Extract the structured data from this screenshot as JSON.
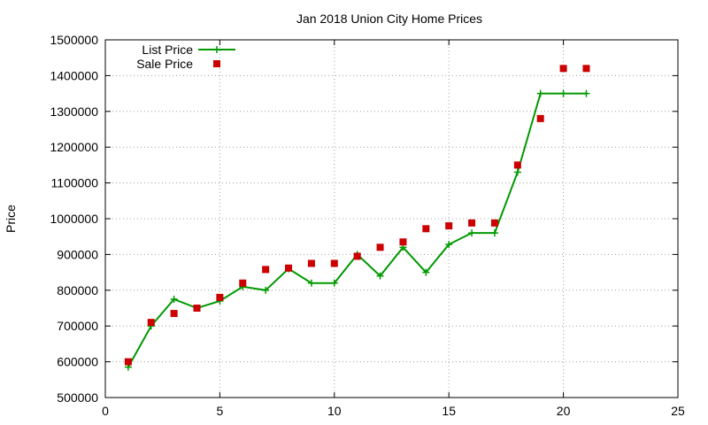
{
  "chart_data": {
    "type": "line",
    "title": "Jan 2018 Union City Home Prices",
    "xlabel": "",
    "ylabel": "Price",
    "xlim": [
      0,
      25
    ],
    "ylim": [
      500000,
      1500000
    ],
    "x_ticks": [
      0,
      5,
      10,
      15,
      20,
      25
    ],
    "y_ticks": [
      500000,
      600000,
      700000,
      800000,
      900000,
      1000000,
      1100000,
      1200000,
      1300000,
      1400000,
      1500000
    ],
    "grid": true,
    "legend_position": "top-left",
    "series": [
      {
        "name": "List Price",
        "style": "line+plus",
        "color": "#009900",
        "x": [
          1,
          2,
          3,
          4,
          5,
          6,
          7,
          8,
          9,
          10,
          11,
          12,
          13,
          14,
          15,
          16,
          17,
          18,
          19,
          20,
          21
        ],
        "values": [
          585000,
          700000,
          775000,
          750000,
          770000,
          810000,
          800000,
          860000,
          820000,
          820000,
          900000,
          840000,
          920000,
          850000,
          928000,
          960000,
          960000,
          1130000,
          1350000,
          1350000,
          1350000
        ]
      },
      {
        "name": "Sale Price",
        "style": "square",
        "color": "#cc0000",
        "x": [
          1,
          2,
          3,
          4,
          5,
          6,
          7,
          8,
          9,
          10,
          11,
          12,
          13,
          14,
          15,
          16,
          17,
          18,
          19,
          20,
          21
        ],
        "values": [
          600000,
          710000,
          735000,
          750000,
          780000,
          820000,
          858000,
          862000,
          875000,
          875000,
          895000,
          920000,
          935000,
          972000,
          980000,
          988000,
          988000,
          1150000,
          1280000,
          1420000,
          1420000
        ]
      }
    ]
  }
}
